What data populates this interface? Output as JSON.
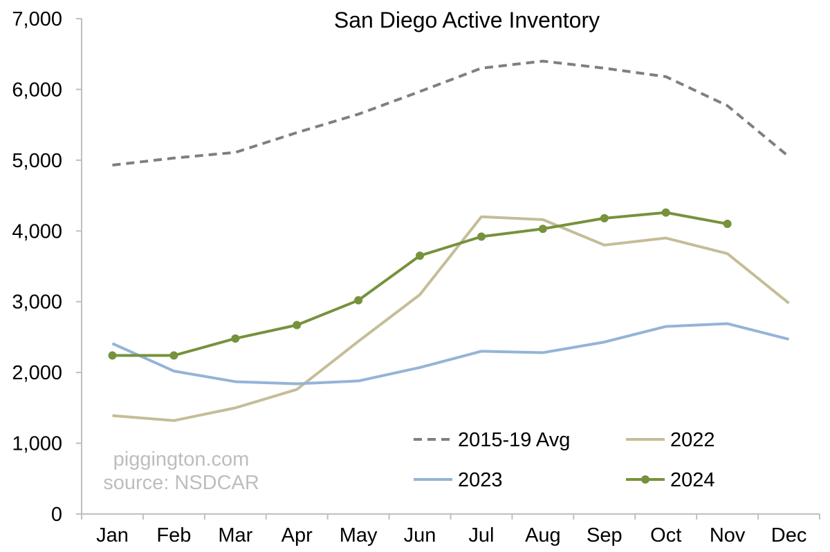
{
  "chart_data": {
    "type": "line",
    "title": "San Diego Active Inventory",
    "xlabel": "",
    "ylabel": "",
    "categories": [
      "Jan",
      "Feb",
      "Mar",
      "Apr",
      "May",
      "Jun",
      "Jul",
      "Aug",
      "Sep",
      "Oct",
      "Nov",
      "Dec"
    ],
    "ylim": [
      0,
      7000
    ],
    "yticks": [
      0,
      1000,
      2000,
      3000,
      4000,
      5000,
      6000,
      7000
    ],
    "ytick_labels": [
      "0",
      "1,000",
      "2,000",
      "3,000",
      "4,000",
      "5,000",
      "6,000",
      "7,000"
    ],
    "grid": false,
    "legend_position": "bottom-right",
    "series": [
      {
        "name": "2015-19 Avg",
        "color": "#7f7f7f",
        "style": "dashed",
        "markers": false,
        "values": [
          4930,
          5030,
          5110,
          5390,
          5650,
          5970,
          6300,
          6400,
          6300,
          6180,
          5770,
          5050
        ]
      },
      {
        "name": "2022",
        "color": "#c4bd97",
        "style": "solid",
        "markers": false,
        "values": [
          1390,
          1320,
          1500,
          1760,
          2440,
          3100,
          4200,
          4160,
          3800,
          3900,
          3680,
          2980
        ]
      },
      {
        "name": "2023",
        "color": "#95b3d7",
        "style": "solid",
        "markers": false,
        "values": [
          2410,
          2020,
          1870,
          1840,
          1880,
          2070,
          2300,
          2280,
          2430,
          2650,
          2690,
          2470
        ]
      },
      {
        "name": "2024",
        "color": "#76923c",
        "style": "solid",
        "markers": true,
        "values": [
          2240,
          2240,
          2480,
          2670,
          3020,
          3650,
          3920,
          4030,
          4180,
          4260,
          4100,
          null
        ]
      }
    ],
    "annotations": [
      "piggington.com",
      "source: NSDCAR"
    ]
  }
}
